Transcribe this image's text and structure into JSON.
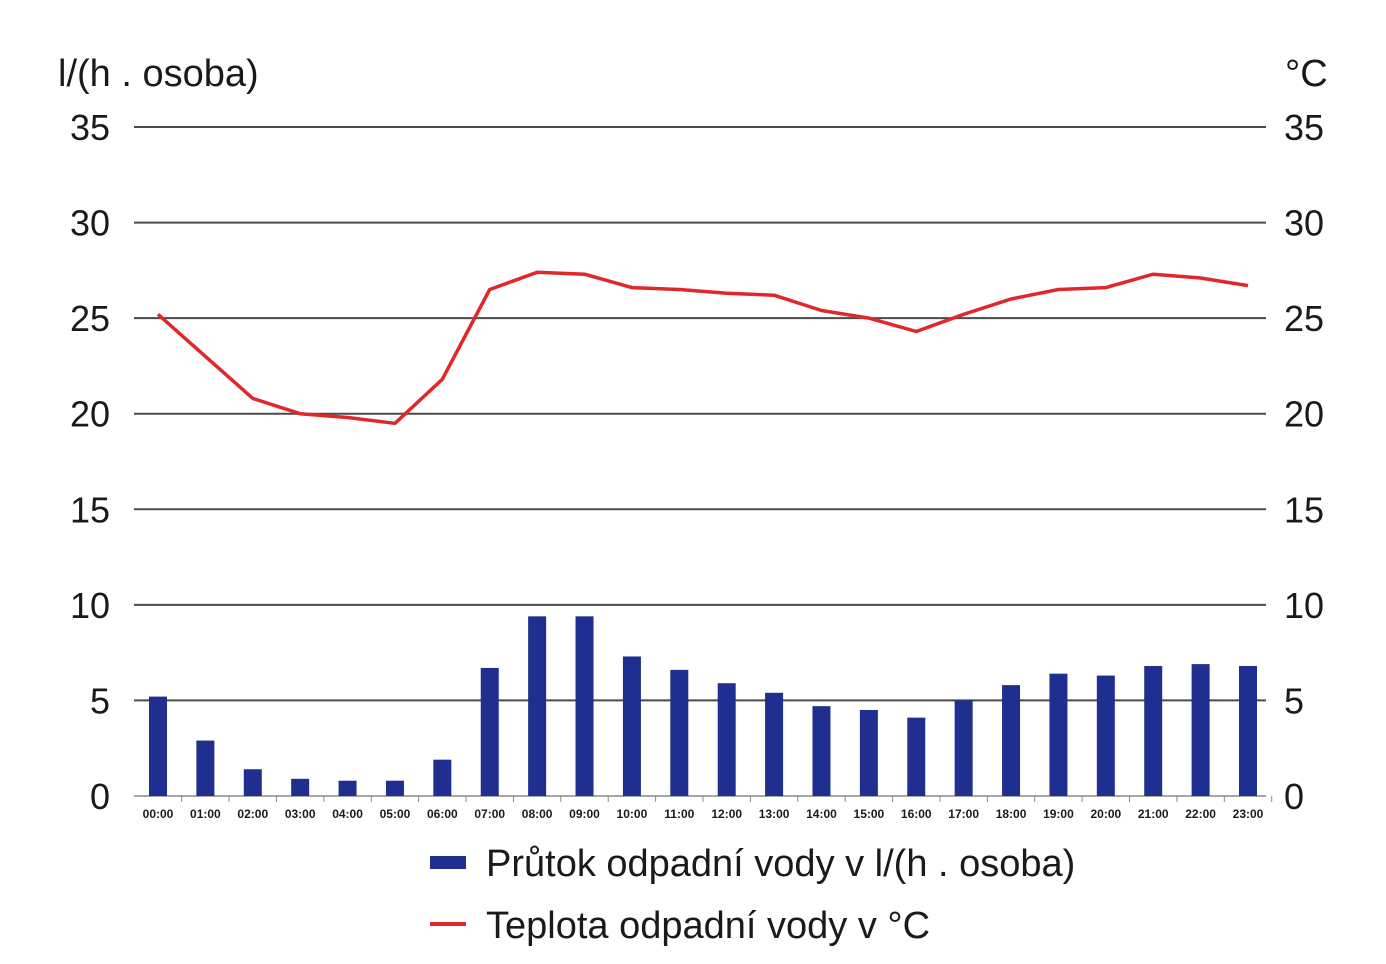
{
  "chart_data": {
    "type": "bar",
    "categories": [
      "00:00",
      "01:00",
      "02:00",
      "03:00",
      "04:00",
      "05:00",
      "06:00",
      "07:00",
      "08:00",
      "09:00",
      "10:00",
      "11:00",
      "12:00",
      "13:00",
      "14:00",
      "15:00",
      "16:00",
      "17:00",
      "18:00",
      "19:00",
      "20:00",
      "21:00",
      "22:00",
      "23:00"
    ],
    "ylabel_left": "l/(h . osoba)",
    "ylabel_right": "°C",
    "ylim": [
      0,
      35
    ],
    "yticks": [
      0,
      5,
      10,
      15,
      20,
      25,
      30,
      35
    ],
    "grid": true,
    "legend_position": "bottom",
    "series": [
      {
        "name": "Průtok odpadní vody v l/(h . osoba)",
        "type": "bar",
        "axis": "left",
        "color": "#1f2f8f",
        "values": [
          5.2,
          2.9,
          1.4,
          0.9,
          0.8,
          0.8,
          1.9,
          6.7,
          9.4,
          9.4,
          7.3,
          6.6,
          5.9,
          5.4,
          4.7,
          4.5,
          4.1,
          5.0,
          5.8,
          6.4,
          6.3,
          6.8,
          6.9,
          6.8
        ]
      },
      {
        "name": "Teplota odpadní vody v °C",
        "type": "line",
        "axis": "right",
        "color": "#e0282a",
        "values": [
          25.2,
          23.0,
          20.8,
          20.0,
          19.8,
          19.5,
          21.8,
          26.5,
          27.4,
          27.3,
          26.6,
          26.5,
          26.3,
          26.2,
          25.4,
          25.0,
          24.3,
          25.2,
          26.0,
          26.5,
          26.6,
          27.3,
          27.1,
          26.7
        ]
      }
    ]
  }
}
